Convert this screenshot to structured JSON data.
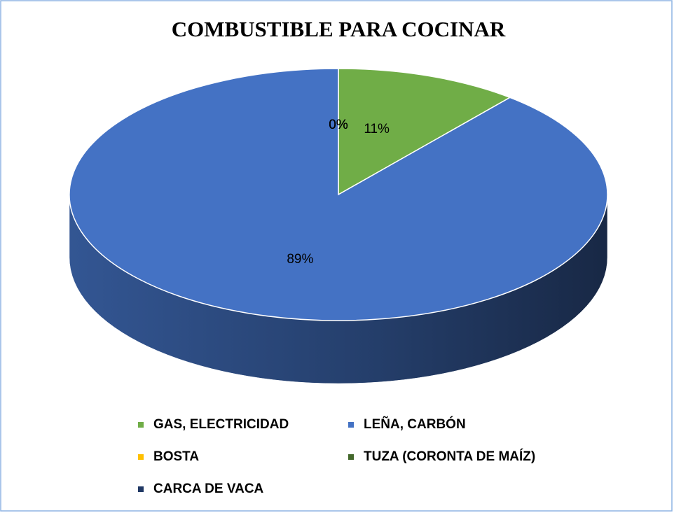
{
  "chart_data": {
    "type": "pie",
    "title": "COMBUSTIBLE PARA COCINAR",
    "categories": [
      "GAS, ELECTRICIDAD",
      "LEÑA, CARBÓN",
      "BOSTA",
      "TUZA (CORONTA DE MAÍZ)",
      "CARCA DE VACA"
    ],
    "values": [
      11,
      89,
      0,
      0,
      0
    ],
    "value_labels": [
      "11%",
      "89%",
      "0%",
      "0%",
      "0%"
    ],
    "colors": [
      "#70ad47",
      "#4472c4",
      "#ffc000",
      "#43682b",
      "#203864"
    ],
    "legend": "bottom"
  }
}
